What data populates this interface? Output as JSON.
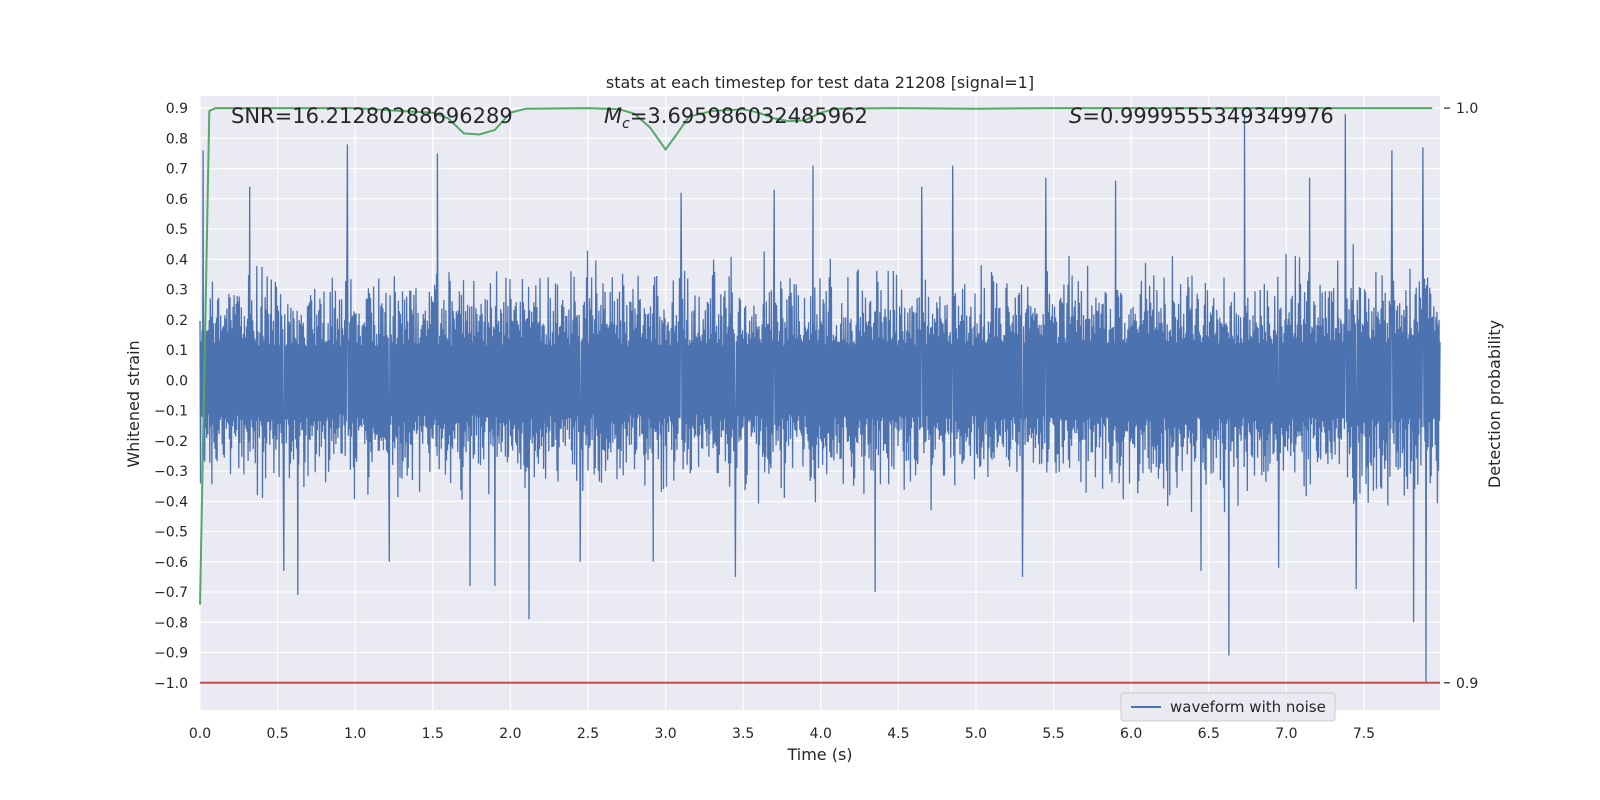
{
  "chart_data": {
    "type": "line",
    "title": "stats at each timestep for test data 21208 [signal=1]",
    "xlabel": "Time (s)",
    "ylabel": "Whitened strain",
    "y2label": "Detection probability",
    "xlim": [
      0.0,
      7.99
    ],
    "ylim": [
      -1.09,
      0.94
    ],
    "y2lim": [
      0.9,
      1.0
    ],
    "grid": true,
    "legend_position": "bottom-right",
    "x_ticks": [
      "0.0",
      "0.5",
      "1.0",
      "1.5",
      "2.0",
      "2.5",
      "3.0",
      "3.5",
      "4.0",
      "4.5",
      "5.0",
      "5.5",
      "6.0",
      "6.5",
      "7.0",
      "7.5"
    ],
    "y_ticks": [
      "0.9",
      "0.8",
      "0.7",
      "0.6",
      "0.5",
      "0.4",
      "0.3",
      "0.2",
      "0.1",
      "0.0",
      "−0.1",
      "−0.2",
      "−0.3",
      "−0.4",
      "−0.5",
      "−0.6",
      "−0.7",
      "−0.8",
      "−0.9",
      "−1.0"
    ],
    "y2_ticks": [
      "1.0",
      "0.9"
    ],
    "annotations": {
      "snr": "SNR=16.21280288696289",
      "mc_symbol": "M",
      "mc_sub": "c",
      "mc_value": "=3.695986032485962",
      "s_symbol": "S",
      "s_value": "=0.9999555349349976"
    },
    "series": [
      {
        "name": "waveform with noise",
        "color": "#4c72b0",
        "axis": "left",
        "envelope_x": [
          0.0,
          0.5,
          1.0,
          1.5,
          2.0,
          2.5,
          3.0,
          3.5,
          4.0,
          4.5,
          5.0,
          5.5,
          6.0,
          6.5,
          7.0,
          7.5,
          7.99
        ],
        "envelope_y": [
          0.45,
          0.45,
          0.45,
          0.46,
          0.46,
          0.45,
          0.45,
          0.45,
          0.46,
          0.47,
          0.46,
          0.47,
          0.48,
          0.48,
          0.49,
          0.5,
          0.5
        ],
        "spikes": [
          {
            "x": 0.02,
            "y": 0.76
          },
          {
            "x": 0.32,
            "y": 0.64
          },
          {
            "x": 0.54,
            "y": -0.63
          },
          {
            "x": 0.63,
            "y": -0.71
          },
          {
            "x": 0.95,
            "y": 0.78
          },
          {
            "x": 1.22,
            "y": -0.6
          },
          {
            "x": 1.53,
            "y": 0.75
          },
          {
            "x": 1.74,
            "y": -0.68
          },
          {
            "x": 1.9,
            "y": -0.68
          },
          {
            "x": 2.12,
            "y": -0.79
          },
          {
            "x": 2.45,
            "y": -0.6
          },
          {
            "x": 2.92,
            "y": -0.6
          },
          {
            "x": 3.1,
            "y": 0.62
          },
          {
            "x": 3.45,
            "y": -0.65
          },
          {
            "x": 3.7,
            "y": 0.63
          },
          {
            "x": 3.95,
            "y": 0.71
          },
          {
            "x": 4.35,
            "y": -0.7
          },
          {
            "x": 4.65,
            "y": 0.64
          },
          {
            "x": 4.85,
            "y": 0.71
          },
          {
            "x": 5.3,
            "y": -0.65
          },
          {
            "x": 5.45,
            "y": 0.67
          },
          {
            "x": 5.9,
            "y": 0.66
          },
          {
            "x": 6.45,
            "y": -0.63
          },
          {
            "x": 6.63,
            "y": -0.91
          },
          {
            "x": 6.73,
            "y": 0.88
          },
          {
            "x": 6.95,
            "y": -0.62
          },
          {
            "x": 7.15,
            "y": 0.67
          },
          {
            "x": 7.38,
            "y": 0.88
          },
          {
            "x": 7.45,
            "y": -0.69
          },
          {
            "x": 7.68,
            "y": 0.76
          },
          {
            "x": 7.82,
            "y": -0.8
          },
          {
            "x": 7.88,
            "y": 0.77
          },
          {
            "x": 7.9,
            "y": -1.0
          }
        ]
      },
      {
        "name": "detection probability",
        "color": "#55a868",
        "axis": "right",
        "x": [
          0.0,
          0.06,
          0.1,
          0.2,
          0.5,
          1.0,
          1.3,
          1.5,
          1.6,
          1.7,
          1.8,
          1.9,
          2.0,
          2.1,
          2.5,
          2.7,
          2.8,
          2.9,
          3.0,
          3.06,
          3.15,
          3.3,
          3.5,
          3.6,
          3.7,
          3.8,
          3.9,
          4.0,
          4.1,
          4.5,
          5.0,
          5.5,
          6.0,
          6.5,
          7.0,
          7.5,
          7.94
        ],
        "y": [
          0.9136,
          0.9995,
          1.0,
          1.0,
          1.0,
          1.0,
          0.9995,
          0.9992,
          0.9982,
          0.9956,
          0.9954,
          0.9962,
          0.9992,
          0.9999,
          1.0,
          0.9998,
          0.999,
          0.9966,
          0.9928,
          0.995,
          0.9985,
          0.9995,
          0.9998,
          0.9992,
          0.9982,
          0.9977,
          0.9979,
          0.9992,
          0.9999,
          1.0,
          0.9999,
          1.0,
          1.0,
          1.0,
          1.0,
          1.0,
          1.0
        ]
      },
      {
        "name": "threshold",
        "color": "#c44e52",
        "axis": "right",
        "x": [
          0.0,
          7.99
        ],
        "y": [
          0.9,
          0.9
        ]
      }
    ],
    "legend": [
      {
        "label": "waveform with noise",
        "color": "#4c72b0"
      }
    ]
  }
}
